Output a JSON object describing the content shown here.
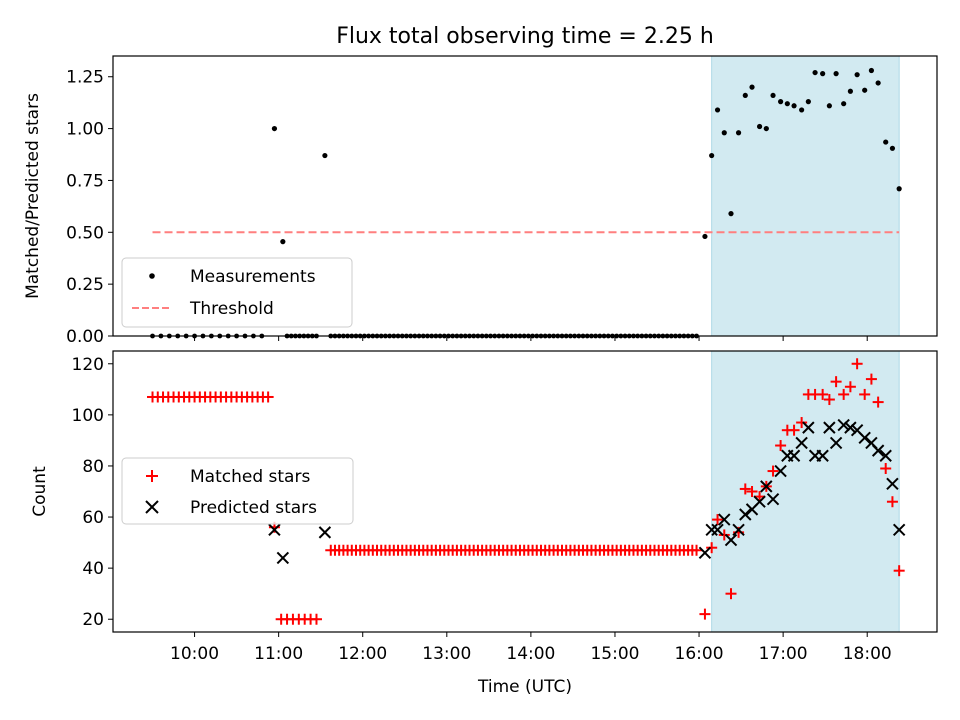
{
  "title": "Flux total observing time = 2.25 h",
  "colors": {
    "measurement": "#000000",
    "threshold": "#ff7f7f",
    "matched": "#ff0000",
    "predicted": "#000000",
    "shade": "#add8e6"
  },
  "chart_data": [
    {
      "type": "scatter",
      "name": "ratio-panel",
      "ylabel": "Matched/Predicted stars",
      "xlabel": "",
      "xlim": [
        9.03,
        18.83
      ],
      "ylim": [
        0,
        1.35
      ],
      "yticks": [
        0,
        0.25,
        0.5,
        0.75,
        1.0,
        1.25
      ],
      "ytick_labels": [
        "0.00",
        "0.25",
        "0.50",
        "0.75",
        "1.00",
        "1.25"
      ],
      "shaded_span": [
        16.15,
        18.38
      ],
      "threshold": {
        "label": "Threshold",
        "value": 0.5,
        "x": [
          9.5,
          18.38
        ]
      },
      "legend": {
        "position": "lower-left",
        "entries": [
          "Measurements",
          "Threshold"
        ]
      },
      "series": [
        {
          "name": "Measurements",
          "points": [
            [
              10.95,
              1.0
            ],
            [
              11.05,
              0.455
            ],
            [
              11.55,
              0.87
            ],
            [
              16.07,
              0.48
            ],
            [
              16.15,
              0.87
            ],
            [
              16.22,
              1.09
            ],
            [
              16.3,
              0.98
            ],
            [
              16.38,
              0.59
            ],
            [
              16.47,
              0.98
            ],
            [
              16.55,
              1.16
            ],
            [
              16.63,
              1.2
            ],
            [
              16.72,
              1.01
            ],
            [
              16.8,
              1.0
            ],
            [
              16.88,
              1.16
            ],
            [
              16.97,
              1.13
            ],
            [
              17.05,
              1.12
            ],
            [
              17.13,
              1.11
            ],
            [
              17.22,
              1.09
            ],
            [
              17.3,
              1.13
            ],
            [
              17.38,
              1.27
            ],
            [
              17.47,
              1.265
            ],
            [
              17.55,
              1.11
            ],
            [
              17.63,
              1.265
            ],
            [
              17.72,
              1.12
            ],
            [
              17.8,
              1.18
            ],
            [
              17.88,
              1.26
            ],
            [
              17.97,
              1.185
            ],
            [
              18.05,
              1.28
            ],
            [
              18.13,
              1.22
            ],
            [
              18.22,
              0.935
            ],
            [
              18.3,
              0.905
            ],
            [
              18.38,
              0.71
            ]
          ],
          "zero_runs": [
            [
              9.5,
              10.88,
              0.1
            ],
            [
              11.1,
              11.45,
              0.05
            ],
            [
              11.62,
              16.0,
              0.05
            ]
          ]
        }
      ]
    },
    {
      "type": "scatter",
      "name": "count-panel",
      "ylabel": "Count",
      "xlabel": "Time (UTC)",
      "xlim": [
        9.03,
        18.83
      ],
      "ylim": [
        15,
        125
      ],
      "yticks": [
        20,
        40,
        60,
        80,
        100,
        120
      ],
      "ytick_labels": [
        "20",
        "40",
        "60",
        "80",
        "100",
        "120"
      ],
      "xticks": [
        10,
        11,
        12,
        13,
        14,
        15,
        16,
        17,
        18
      ],
      "xtick_labels": [
        "10:00",
        "11:00",
        "12:00",
        "13:00",
        "14:00",
        "15:00",
        "16:00",
        "17:00",
        "18:00"
      ],
      "shaded_span": [
        16.15,
        18.38
      ],
      "legend": {
        "position": "center-left",
        "entries": [
          "Matched stars",
          "Predicted stars"
        ]
      },
      "series": [
        {
          "name": "Matched stars",
          "marker": "plus",
          "points": [
            [
              10.95,
              56
            ],
            [
              16.07,
              22
            ],
            [
              16.15,
              48
            ],
            [
              16.22,
              59
            ],
            [
              16.3,
              53
            ],
            [
              16.38,
              30
            ],
            [
              16.47,
              54
            ],
            [
              16.55,
              71
            ],
            [
              16.63,
              70
            ],
            [
              16.72,
              68
            ],
            [
              16.8,
              72
            ],
            [
              16.88,
              78
            ],
            [
              16.97,
              88
            ],
            [
              17.05,
              94
            ],
            [
              17.13,
              94
            ],
            [
              17.22,
              97
            ],
            [
              17.3,
              108
            ],
            [
              17.38,
              108
            ],
            [
              17.47,
              108
            ],
            [
              17.55,
              106
            ],
            [
              17.63,
              113
            ],
            [
              17.72,
              108
            ],
            [
              17.8,
              111
            ],
            [
              17.88,
              120
            ],
            [
              17.97,
              108
            ],
            [
              18.05,
              114
            ],
            [
              18.13,
              105
            ],
            [
              18.22,
              79
            ],
            [
              18.3,
              66
            ],
            [
              18.38,
              39
            ]
          ],
          "constant_runs": [
            [
              9.5,
              10.9,
              107,
              0.0625
            ],
            [
              11.03,
              11.45,
              20,
              0.07
            ],
            [
              11.62,
              16.0,
              47,
              0.05
            ]
          ]
        },
        {
          "name": "Predicted stars",
          "marker": "x",
          "points": [
            [
              10.95,
              55
            ],
            [
              11.05,
              44
            ],
            [
              11.55,
              54
            ],
            [
              16.07,
              46
            ],
            [
              16.15,
              55
            ],
            [
              16.22,
              55
            ],
            [
              16.3,
              59
            ],
            [
              16.38,
              51
            ],
            [
              16.47,
              55
            ],
            [
              16.55,
              61
            ],
            [
              16.63,
              63
            ],
            [
              16.72,
              66
            ],
            [
              16.8,
              72
            ],
            [
              16.88,
              67
            ],
            [
              16.97,
              78
            ],
            [
              17.05,
              84
            ],
            [
              17.13,
              84
            ],
            [
              17.22,
              89
            ],
            [
              17.3,
              95
            ],
            [
              17.38,
              84
            ],
            [
              17.47,
              84
            ],
            [
              17.55,
              95
            ],
            [
              17.63,
              89
            ],
            [
              17.72,
              96
            ],
            [
              17.8,
              95
            ],
            [
              17.88,
              94
            ],
            [
              17.97,
              91
            ],
            [
              18.05,
              89
            ],
            [
              18.13,
              86
            ],
            [
              18.22,
              84
            ],
            [
              18.3,
              73
            ],
            [
              18.38,
              55
            ]
          ]
        }
      ]
    }
  ]
}
